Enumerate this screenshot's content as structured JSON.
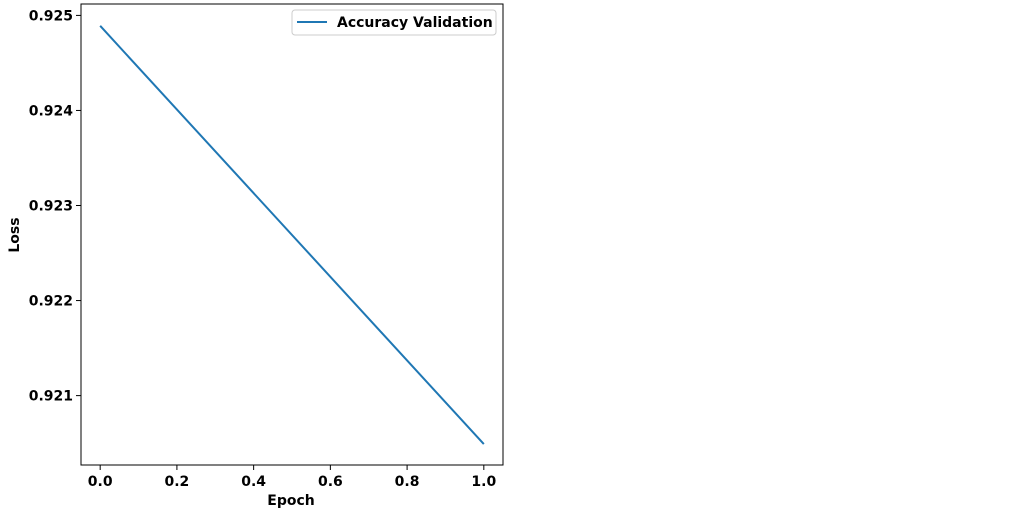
{
  "chart_data": {
    "type": "line",
    "title": "",
    "xlabel": "Epoch",
    "ylabel": "Loss",
    "xlim": [
      -0.05,
      1.05
    ],
    "ylim": [
      0.92027,
      0.92512
    ],
    "xticks": [
      0.0,
      0.2,
      0.4,
      0.6,
      0.8,
      1.0
    ],
    "xtick_labels": [
      "0.0",
      "0.2",
      "0.4",
      "0.6",
      "0.8",
      "1.0"
    ],
    "yticks": [
      0.921,
      0.922,
      0.923,
      0.924,
      0.925
    ],
    "ytick_labels": [
      "0.921",
      "0.922",
      "0.923",
      "0.924",
      "0.925"
    ],
    "grid": false,
    "legend_position": "top-right",
    "series": [
      {
        "name": "Accuracy Validation",
        "color": "#1f77b4",
        "x": [
          0.0,
          1.0
        ],
        "y": [
          0.92489,
          0.92049
        ]
      }
    ]
  }
}
